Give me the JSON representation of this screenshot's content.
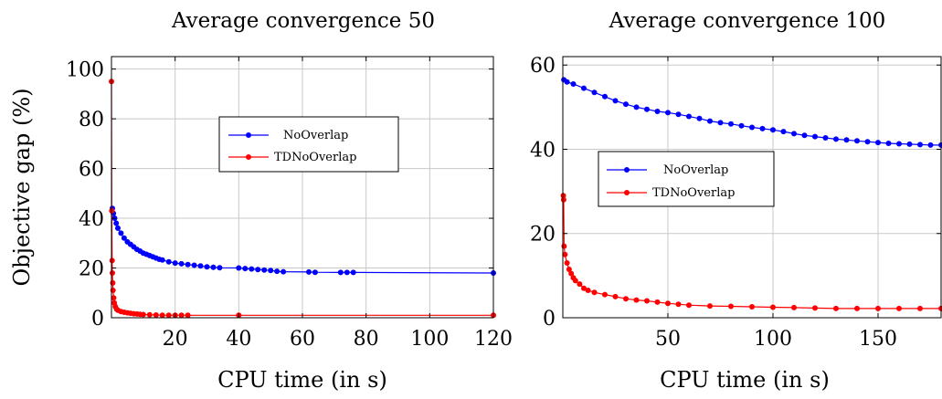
{
  "chart_data": [
    {
      "type": "line",
      "title": "Average convergence 50",
      "xlabel": "CPU time (in s)",
      "ylabel": "Objective gap (%)",
      "xlim": [
        0,
        120
      ],
      "ylim": [
        0,
        105
      ],
      "x_ticks": [
        20,
        40,
        60,
        80,
        100,
        120
      ],
      "y_ticks": [
        0,
        20,
        40,
        60,
        80,
        100
      ],
      "grid": true,
      "legend_position": "center-right",
      "series": [
        {
          "name": "NoOverlap",
          "color": "#0000ff",
          "points": [
            [
              0.3,
              44
            ],
            [
              0.6,
              42
            ],
            [
              1,
              40
            ],
            [
              1.5,
              38
            ],
            [
              2,
              36
            ],
            [
              3,
              34
            ],
            [
              4,
              32
            ],
            [
              5,
              30.5
            ],
            [
              6,
              29.5
            ],
            [
              7,
              28.5
            ],
            [
              8,
              27.5
            ],
            [
              9,
              26.8
            ],
            [
              10,
              26
            ],
            [
              11,
              25.5
            ],
            [
              12,
              25
            ],
            [
              13,
              24.5
            ],
            [
              14,
              24
            ],
            [
              15,
              23.5
            ],
            [
              16,
              23.2
            ],
            [
              18,
              22.5
            ],
            [
              20,
              22
            ],
            [
              22,
              21.7
            ],
            [
              24,
              21.4
            ],
            [
              26,
              21.1
            ],
            [
              28,
              20.8
            ],
            [
              30,
              20.5
            ],
            [
              32,
              20.3
            ],
            [
              34,
              20.1
            ],
            [
              40,
              20
            ],
            [
              42,
              19.8
            ],
            [
              44,
              19.6
            ],
            [
              46,
              19.4
            ],
            [
              48,
              19.2
            ],
            [
              50,
              19
            ],
            [
              52,
              18.7
            ],
            [
              54,
              18.5
            ],
            [
              62,
              18.4
            ],
            [
              64,
              18.3
            ],
            [
              72,
              18.2
            ],
            [
              74,
              18.2
            ],
            [
              76,
              18.2
            ],
            [
              120,
              18
            ]
          ],
          "markers_x": [
            0.3,
            0.6,
            1,
            1.5,
            2,
            3,
            4,
            5,
            6,
            7,
            8,
            9,
            10,
            11,
            12,
            13,
            14,
            15,
            16,
            18,
            20,
            22,
            24,
            26,
            28,
            30,
            32,
            34,
            40,
            42,
            44,
            46,
            48,
            50,
            52,
            54,
            62,
            64,
            72,
            74,
            76,
            120
          ]
        },
        {
          "name": "TDNoOverlap",
          "color": "#ff0000",
          "points": [
            [
              0,
              95
            ],
            [
              0.1,
              43
            ],
            [
              0.2,
              23
            ],
            [
              0.3,
              18
            ],
            [
              0.4,
              14
            ],
            [
              0.5,
              11
            ],
            [
              0.7,
              8
            ],
            [
              0.9,
              6
            ],
            [
              1.2,
              4.5
            ],
            [
              1.6,
              3.5
            ],
            [
              2,
              3
            ],
            [
              3,
              2.5
            ],
            [
              4,
              2.2
            ],
            [
              5,
              2
            ],
            [
              6,
              1.8
            ],
            [
              7,
              1.6
            ],
            [
              8,
              1.5
            ],
            [
              9,
              1.4
            ],
            [
              10,
              1.3
            ],
            [
              12,
              1.2
            ],
            [
              14,
              1.1
            ],
            [
              16,
              1
            ],
            [
              18,
              1
            ],
            [
              20,
              1
            ],
            [
              22,
              1
            ],
            [
              24,
              1
            ],
            [
              40,
              1
            ],
            [
              120,
              1
            ]
          ],
          "markers_x": [
            0,
            0.1,
            0.2,
            0.3,
            0.4,
            0.5,
            0.7,
            0.9,
            1.2,
            1.6,
            2,
            3,
            4,
            5,
            6,
            7,
            8,
            9,
            10,
            12,
            14,
            16,
            18,
            20,
            22,
            24,
            40,
            120
          ]
        }
      ]
    },
    {
      "type": "line",
      "title": "Average convergence 100",
      "xlabel": "CPU time (in s)",
      "ylabel": "",
      "xlim": [
        0,
        180
      ],
      "ylim": [
        0,
        62
      ],
      "x_ticks": [
        50,
        100,
        150
      ],
      "y_ticks": [
        0,
        20,
        40,
        60
      ],
      "grid": true,
      "legend_position": "center-left",
      "series": [
        {
          "name": "NoOverlap",
          "color": "#0000ff",
          "points": [
            [
              0.5,
              56.5
            ],
            [
              2,
              56
            ],
            [
              5,
              55.5
            ],
            [
              10,
              54.5
            ],
            [
              15,
              53.5
            ],
            [
              20,
              52.5
            ],
            [
              25,
              51.5
            ],
            [
              30,
              50.7
            ],
            [
              35,
              50
            ],
            [
              40,
              49.5
            ],
            [
              45,
              49
            ],
            [
              50,
              48.7
            ],
            [
              55,
              48.3
            ],
            [
              60,
              47.8
            ],
            [
              65,
              47.3
            ],
            [
              70,
              46.7
            ],
            [
              75,
              46.3
            ],
            [
              80,
              46
            ],
            [
              85,
              45.6
            ],
            [
              90,
              45.2
            ],
            [
              95,
              44.9
            ],
            [
              100,
              44.6
            ],
            [
              105,
              44.2
            ],
            [
              110,
              43.7
            ],
            [
              115,
              43.3
            ],
            [
              120,
              43
            ],
            [
              125,
              42.7
            ],
            [
              130,
              42.4
            ],
            [
              135,
              42.2
            ],
            [
              140,
              42
            ],
            [
              145,
              41.8
            ],
            [
              150,
              41.6
            ],
            [
              155,
              41.4
            ],
            [
              160,
              41.3
            ],
            [
              165,
              41.2
            ],
            [
              170,
              41.1
            ],
            [
              175,
              41
            ],
            [
              180,
              41
            ]
          ],
          "markers_x": [
            0.5,
            2,
            5,
            10,
            15,
            20,
            25,
            30,
            35,
            40,
            45,
            50,
            55,
            60,
            65,
            70,
            75,
            80,
            85,
            90,
            95,
            100,
            105,
            110,
            115,
            120,
            125,
            130,
            135,
            140,
            145,
            150,
            155,
            160,
            165,
            170,
            175,
            180
          ]
        },
        {
          "name": "TDNoOverlap",
          "color": "#ff0000",
          "points": [
            [
              0.2,
              29
            ],
            [
              0.4,
              28
            ],
            [
              0.6,
              17
            ],
            [
              1,
              15
            ],
            [
              2,
              13
            ],
            [
              3,
              11.5
            ],
            [
              4,
              10.5
            ],
            [
              5,
              9.5
            ],
            [
              6,
              8.8
            ],
            [
              8,
              8
            ],
            [
              10,
              7
            ],
            [
              12,
              6.5
            ],
            [
              15,
              6
            ],
            [
              20,
              5.5
            ],
            [
              25,
              5
            ],
            [
              30,
              4.5
            ],
            [
              35,
              4.2
            ],
            [
              40,
              4
            ],
            [
              45,
              3.7
            ],
            [
              50,
              3.4
            ],
            [
              55,
              3.2
            ],
            [
              60,
              3
            ],
            [
              70,
              2.8
            ],
            [
              80,
              2.7
            ],
            [
              90,
              2.6
            ],
            [
              100,
              2.5
            ],
            [
              110,
              2.4
            ],
            [
              120,
              2.3
            ],
            [
              130,
              2.2
            ],
            [
              140,
              2.2
            ],
            [
              150,
              2.2
            ],
            [
              160,
              2.2
            ],
            [
              170,
              2.2
            ],
            [
              180,
              2.2
            ]
          ],
          "markers_x": [
            0.2,
            0.4,
            0.6,
            1,
            2,
            3,
            4,
            5,
            6,
            8,
            10,
            12,
            15,
            20,
            25,
            30,
            35,
            40,
            45,
            50,
            55,
            60,
            70,
            80,
            90,
            100,
            110,
            120,
            130,
            140,
            150,
            160,
            170,
            180
          ]
        }
      ]
    }
  ]
}
